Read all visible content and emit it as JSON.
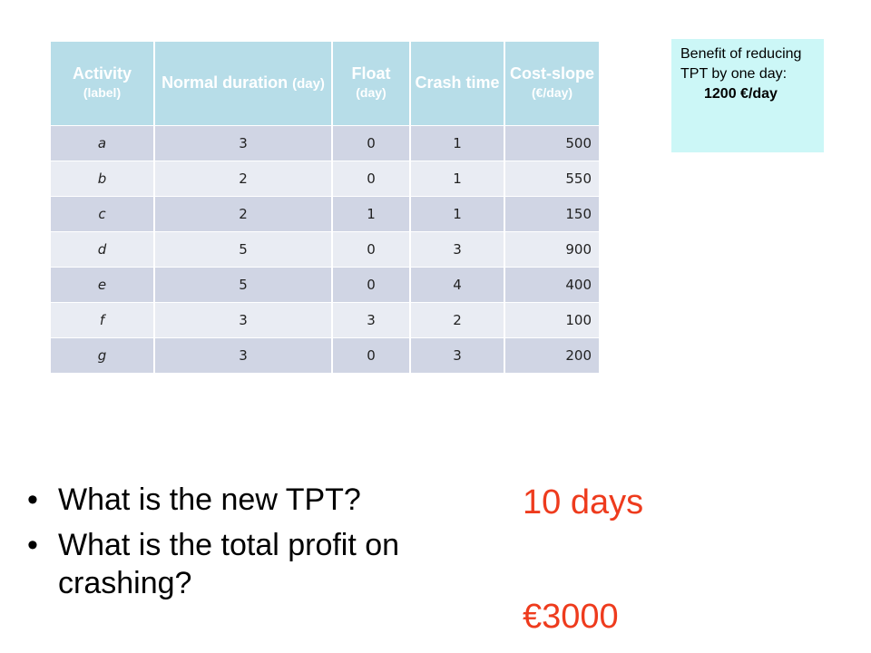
{
  "table": {
    "headers": [
      {
        "main": "Activity",
        "sub": "(label)"
      },
      {
        "main": "Normal duration",
        "sub": "(day)"
      },
      {
        "main": "Float",
        "sub": "(day)"
      },
      {
        "main": "Crash time",
        "sub": ""
      },
      {
        "main": "Cost-slope",
        "sub": "(€/day)"
      }
    ],
    "rows": [
      {
        "activity": "a",
        "normal": "3",
        "float": "0",
        "crash": "1",
        "slope": "500"
      },
      {
        "activity": "b",
        "normal": "2",
        "float": "0",
        "crash": "1",
        "slope": "550"
      },
      {
        "activity": "c",
        "normal": "2",
        "float": "1",
        "crash": "1",
        "slope": "150"
      },
      {
        "activity": "d",
        "normal": "5",
        "float": "0",
        "crash": "3",
        "slope": "900"
      },
      {
        "activity": "e",
        "normal": "5",
        "float": "0",
        "crash": "4",
        "slope": "400"
      },
      {
        "activity": "f",
        "normal": "3",
        "float": "3",
        "crash": "2",
        "slope": "100"
      },
      {
        "activity": "g",
        "normal": "3",
        "float": "0",
        "crash": "3",
        "slope": "200"
      }
    ]
  },
  "benefit": {
    "text": "Benefit of reducing TPT by one day:",
    "value": "1200 €/day"
  },
  "questions": [
    {
      "bullet": "•",
      "text": "What is the new TPT?"
    },
    {
      "bullet": "•",
      "text": "What is the total profit on crashing?"
    }
  ],
  "answers": [
    "10 days",
    "€3000"
  ],
  "colors": {
    "header_bg": "#b7dde8",
    "row_dark": "#d0d5e4",
    "row_light": "#e9ecf3",
    "benefit_bg": "#ccf7f7",
    "answer": "#ee3b1d"
  }
}
